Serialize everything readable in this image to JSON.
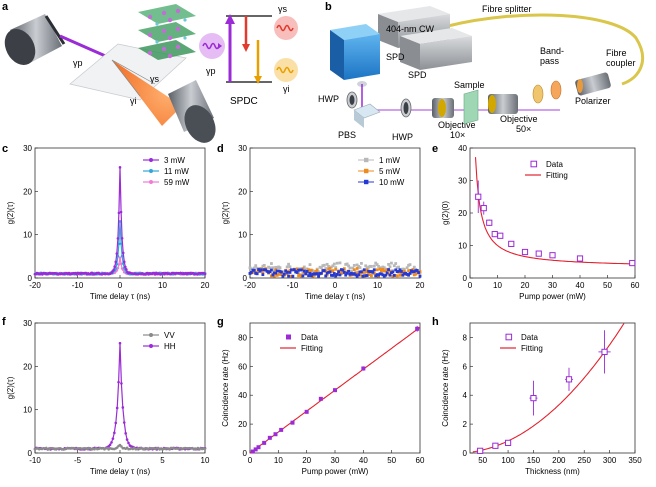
{
  "panel_labels": [
    "a",
    "b",
    "c",
    "d",
    "e",
    "f",
    "g",
    "h"
  ],
  "schematic_a": {
    "gamma_p": "γp",
    "gamma_s": "γs",
    "gamma_i": "γi",
    "energy_gamma_p": "γp",
    "energy_gamma_s": "γs",
    "energy_gamma_i": "γi",
    "process": "SPDC",
    "colors": {
      "pump": "#9b2bd6",
      "signal": "#e23a2e",
      "idler": "#e8a000"
    }
  },
  "setup_b": {
    "laser": "404-nm CW",
    "hwp1": "HWP",
    "pbs": "PBS",
    "hwp2": "HWP",
    "objective1_line1": "Objective",
    "objective1_line2": "10×",
    "sample": "Sample",
    "objective2_line1": "Objective",
    "objective2_line2": "50×",
    "bandpass_line1": "Band-",
    "bandpass_line2": "pass",
    "polarizer": "Polarizer",
    "fibre_coupler_line1": "Fibre",
    "fibre_coupler_line2": "coupler",
    "fibre_splitter": "Fibre splitter",
    "spd1": "SPD",
    "spd2": "SPD"
  },
  "chart_data": [
    {
      "id": "c",
      "type": "line",
      "xlabel": "Time delay τ (ns)",
      "ylabel": "g(2)(τ)",
      "xlim": [
        -20,
        20
      ],
      "ylim": [
        0,
        30
      ],
      "xticks": [
        -20,
        -10,
        0,
        10,
        20
      ],
      "yticks": [
        0,
        10,
        20,
        30
      ],
      "legend": "top-right",
      "series": [
        {
          "name": "3 mW",
          "color": "#9b2bd6",
          "peak": 25.5,
          "width": 0.45,
          "base": 1.0
        },
        {
          "name": "11 mW",
          "color": "#2fa6dc",
          "peak": 13.2,
          "width": 0.45,
          "base": 1.0
        },
        {
          "name": "59 mW",
          "color": "#f07ad8",
          "peak": 4.6,
          "width": 0.5,
          "base": 1.0
        }
      ]
    },
    {
      "id": "d",
      "type": "scatter",
      "xlabel": "Time delay τ (ns)",
      "ylabel": "g(2)(τ)",
      "xlim": [
        -20,
        20
      ],
      "ylim": [
        0,
        30
      ],
      "xticks": [
        -20,
        -10,
        0,
        10,
        20
      ],
      "yticks": [
        0,
        10,
        20,
        30
      ],
      "legend": "top-right",
      "series": [
        {
          "name": "1 mW",
          "color": "#b8b8b8",
          "mean": 2.2,
          "spread": 1.3
        },
        {
          "name": "5 mW",
          "color": "#f08a1c",
          "mean": 1.3,
          "spread": 0.9
        },
        {
          "name": "10 mW",
          "color": "#2438d6",
          "mean": 1.2,
          "spread": 0.8
        }
      ]
    },
    {
      "id": "e",
      "type": "scatter",
      "xlabel": "Pump power (mW)",
      "ylabel": "g(2)(0)",
      "xlim": [
        0,
        60
      ],
      "ylim": [
        0,
        40
      ],
      "xticks": [
        0,
        10,
        20,
        30,
        40,
        50,
        60
      ],
      "yticks": [
        0,
        10,
        20,
        30,
        40
      ],
      "legend": "top-right",
      "series": [
        {
          "name": "Data",
          "color": "#9b2bd6",
          "x": [
            3,
            5,
            7,
            9,
            11,
            15,
            20,
            25,
            30,
            40,
            59
          ],
          "y": [
            25,
            21.5,
            17,
            13.5,
            13,
            10.5,
            8,
            7.5,
            7,
            6,
            4.6
          ],
          "err": [
            5,
            2,
            1,
            0.8,
            0.8,
            0.5,
            0.4,
            0.4,
            0.3,
            0.3,
            0.3
          ]
        },
        {
          "name": "Fitting",
          "color": "#e3222e",
          "fit": "a/x+b",
          "a": 68,
          "b": 3.2
        }
      ]
    },
    {
      "id": "f",
      "type": "line",
      "xlabel": "Time delay τ (ns)",
      "ylabel": "g(2)(τ)",
      "xlim": [
        -10,
        10
      ],
      "ylim": [
        0,
        30
      ],
      "xticks": [
        -10,
        -5,
        0,
        5,
        10
      ],
      "yticks": [
        0,
        10,
        20,
        30
      ],
      "legend": "top-right",
      "series": [
        {
          "name": "VV",
          "color": "#8a8a8a",
          "peak": 1.8,
          "width": 0.3,
          "base": 1.0
        },
        {
          "name": "HH",
          "color": "#9b2bd6",
          "peak": 25.5,
          "width": 0.35,
          "base": 1.0
        }
      ]
    },
    {
      "id": "g",
      "type": "scatter",
      "xlabel": "Pump power (mW)",
      "ylabel": "Coincidence rate (Hz)",
      "xlim": [
        0,
        60
      ],
      "ylim": [
        0,
        90
      ],
      "xticks": [
        0,
        10,
        20,
        30,
        40,
        50,
        60
      ],
      "yticks": [
        0,
        20,
        40,
        60,
        80
      ],
      "legend": "top-left",
      "series": [
        {
          "name": "Data",
          "color": "#9b2bd6",
          "x": [
            1,
            2,
            3,
            5,
            7,
            9,
            11,
            15,
            20,
            25,
            30,
            40,
            59
          ],
          "y": [
            1,
            2.5,
            4,
            7,
            10.5,
            13,
            16,
            21,
            28.5,
            37.5,
            43.5,
            58.5,
            86
          ],
          "err": [
            0.3,
            0.3,
            0.3,
            0.4,
            0.4,
            0.5,
            0.5,
            0.6,
            0.8,
            1,
            1.2,
            1.5,
            2
          ]
        },
        {
          "name": "Fitting",
          "color": "#e3222e",
          "fit": "linear",
          "a": 1.45,
          "b": 0
        }
      ]
    },
    {
      "id": "h",
      "type": "scatter",
      "xlabel": "Thickness (nm)",
      "ylabel": "Coincidence rate (Hz)",
      "xlim": [
        25,
        350
      ],
      "ylim": [
        0,
        9
      ],
      "xticks": [
        50,
        100,
        150,
        200,
        250,
        300,
        350
      ],
      "yticks": [
        0,
        2,
        4,
        6,
        8
      ],
      "legend": "top-left",
      "series": [
        {
          "name": "Data",
          "color": "#9b2bd6",
          "x": [
            45,
            75,
            100,
            150,
            220,
            290
          ],
          "y": [
            0.15,
            0.5,
            0.7,
            3.8,
            5.1,
            7.0
          ],
          "err": [
            0.1,
            0.2,
            0.2,
            1.2,
            0.8,
            1.5
          ],
          "xerr": [
            5,
            5,
            5,
            8,
            8,
            12
          ]
        },
        {
          "name": "Fitting",
          "color": "#e3222e",
          "fit": "power",
          "a": 7.0,
          "x0": 290,
          "p": 2
        }
      ]
    }
  ]
}
